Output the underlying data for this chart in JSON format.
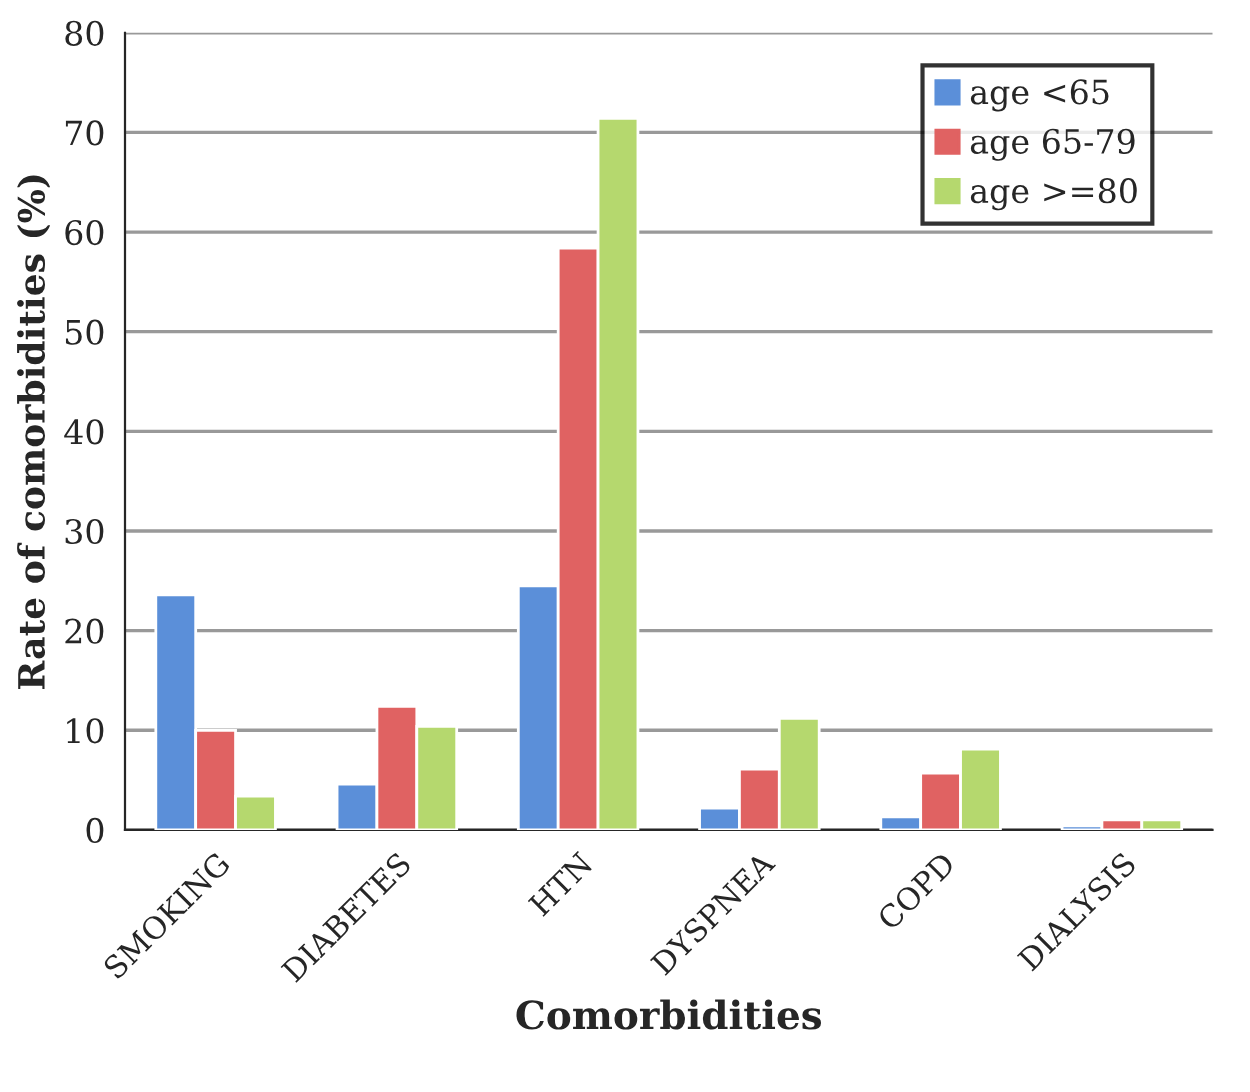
{
  "chart_data": {
    "type": "bar",
    "xlabel": "Comorbidities",
    "ylabel": "Rate of comorbidities (%)",
    "categories": [
      "SMOKING",
      "DIABETES",
      "HTN",
      "DYSPNEA",
      "COPD",
      "DIALYSIS"
    ],
    "series": [
      {
        "name": "age <65",
        "color": "#5b8fd9",
        "values": [
          23.6,
          4.6,
          24.5,
          2.2,
          1.3,
          0.4
        ]
      },
      {
        "name": "age 65-79",
        "color": "#e06262",
        "values": [
          10.0,
          12.4,
          58.4,
          6.1,
          5.7,
          1.0
        ]
      },
      {
        "name": "age >=80",
        "color": "#b5d86e",
        "values": [
          3.4,
          10.4,
          71.4,
          11.2,
          8.1,
          1.0
        ]
      }
    ],
    "ylim": [
      0,
      80
    ],
    "yticks": [
      0,
      10,
      20,
      30,
      40,
      50,
      60,
      70,
      80
    ],
    "grid": "y",
    "legend": "top right"
  }
}
